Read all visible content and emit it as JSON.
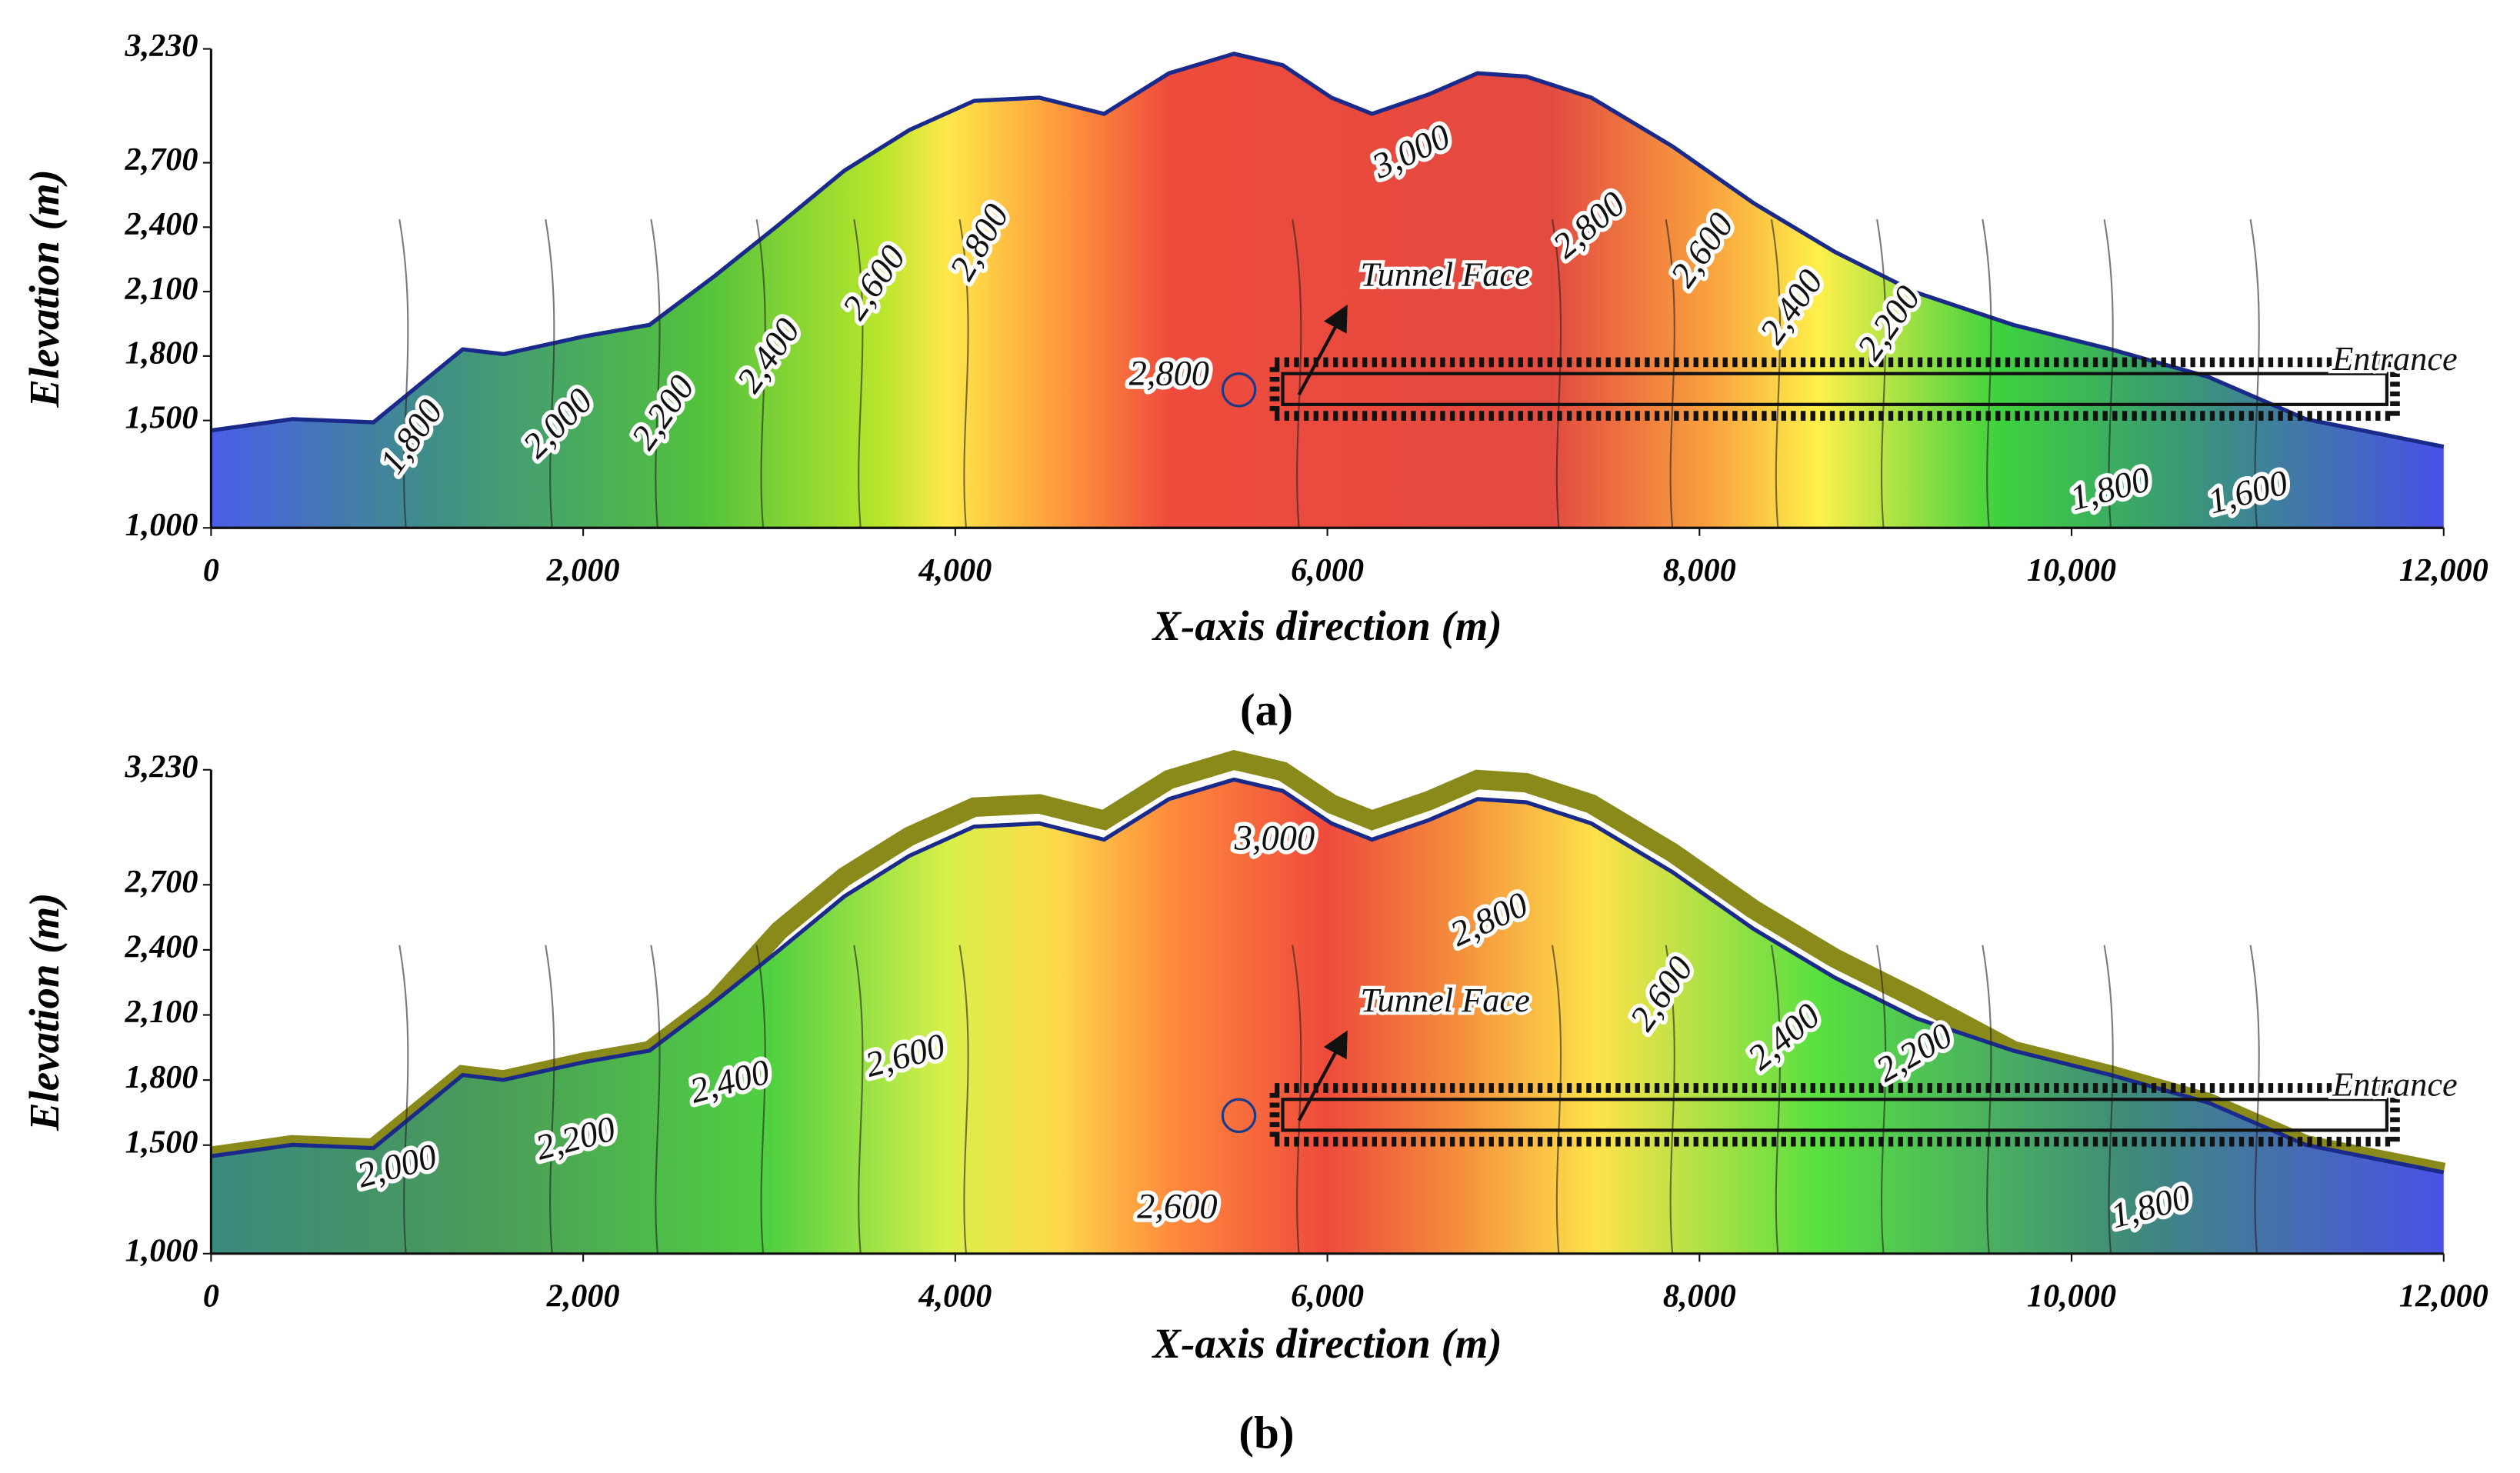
{
  "chart_data": [
    {
      "type": "contour",
      "panel_label": "(a)",
      "x_label": "X-axis direction (m)",
      "y_label": "Elevation (m)",
      "xlim": [
        0,
        12000
      ],
      "ylim": [
        1000,
        3230
      ],
      "xticks": [
        0,
        {
          "value": 2000,
          "label": "2,000"
        },
        {
          "value": 4000,
          "label": "4,000"
        },
        {
          "value": 6000,
          "label": "6,000"
        },
        {
          "value": 8000,
          "label": "8,000"
        },
        {
          "value": 10000,
          "label": "10,000"
        },
        {
          "value": 12000,
          "label": "12,000"
        }
      ],
      "yticks": [
        {
          "value": 1000,
          "label": "1,000"
        },
        {
          "value": 1500,
          "label": "1,500"
        },
        {
          "value": 1800,
          "label": "1,800"
        },
        {
          "value": 2100,
          "label": "2,100"
        },
        {
          "value": 2400,
          "label": "2,400"
        },
        {
          "value": 2700,
          "label": "2,700"
        },
        {
          "value": 3230,
          "label": "3,230"
        }
      ],
      "contour_labels": [
        {
          "value": 1800,
          "label": "1,800"
        },
        {
          "value": 2000,
          "label": "2,000"
        },
        {
          "value": 2200,
          "label": "2,200"
        },
        {
          "value": 2400,
          "label": "2,400"
        },
        {
          "value": 2600,
          "label": "2,600"
        },
        {
          "value": 2800,
          "label": "2,800"
        },
        {
          "value": 3000,
          "label": "3,000"
        },
        {
          "value": 2800,
          "label": "2,800"
        },
        {
          "value": 2600,
          "label": "2,600"
        },
        {
          "value": 2400,
          "label": "2,400"
        },
        {
          "value": 2200,
          "label": "2,200"
        },
        {
          "value": 2800,
          "label": "2,800"
        },
        {
          "value": 1800,
          "label": "1,800"
        },
        {
          "value": 1600,
          "label": "1,600"
        }
      ],
      "annotations": [
        "Tunnel Face",
        "Entrance"
      ]
    },
    {
      "type": "contour",
      "panel_label": "(b)",
      "x_label": "X-axis direction (m)",
      "y_label": "Elevation (m)",
      "xlim": [
        0,
        12000
      ],
      "ylim": [
        1000,
        3230
      ],
      "xticks": [
        0,
        {
          "value": 2000,
          "label": "2,000"
        },
        {
          "value": 4000,
          "label": "4,000"
        },
        {
          "value": 6000,
          "label": "6,000"
        },
        {
          "value": 8000,
          "label": "8,000"
        },
        {
          "value": 10000,
          "label": "10,000"
        },
        {
          "value": 12000,
          "label": "12,000"
        }
      ],
      "yticks": [
        {
          "value": 1000,
          "label": "1,000"
        },
        {
          "value": 1500,
          "label": "1,500"
        },
        {
          "value": 1800,
          "label": "1,800"
        },
        {
          "value": 2100,
          "label": "2,100"
        },
        {
          "value": 2400,
          "label": "2,400"
        },
        {
          "value": 2700,
          "label": "2,700"
        },
        {
          "value": 3230,
          "label": "3,230"
        }
      ],
      "contour_labels": [
        {
          "value": 2000,
          "label": "2,000"
        },
        {
          "value": 2200,
          "label": "2,200"
        },
        {
          "value": 2400,
          "label": "2,400"
        },
        {
          "value": 2600,
          "label": "2,600"
        },
        {
          "value": 3000,
          "label": "3,000"
        },
        {
          "value": 2800,
          "label": "2,800"
        },
        {
          "value": 2600,
          "label": "2,600"
        },
        {
          "value": 2400,
          "label": "2,400"
        },
        {
          "value": 2200,
          "label": "2,200"
        },
        {
          "value": 2600,
          "label": "2,600"
        },
        {
          "value": 1800,
          "label": "1,800"
        }
      ],
      "annotations": [
        "Tunnel Face",
        "Entrance"
      ]
    }
  ]
}
